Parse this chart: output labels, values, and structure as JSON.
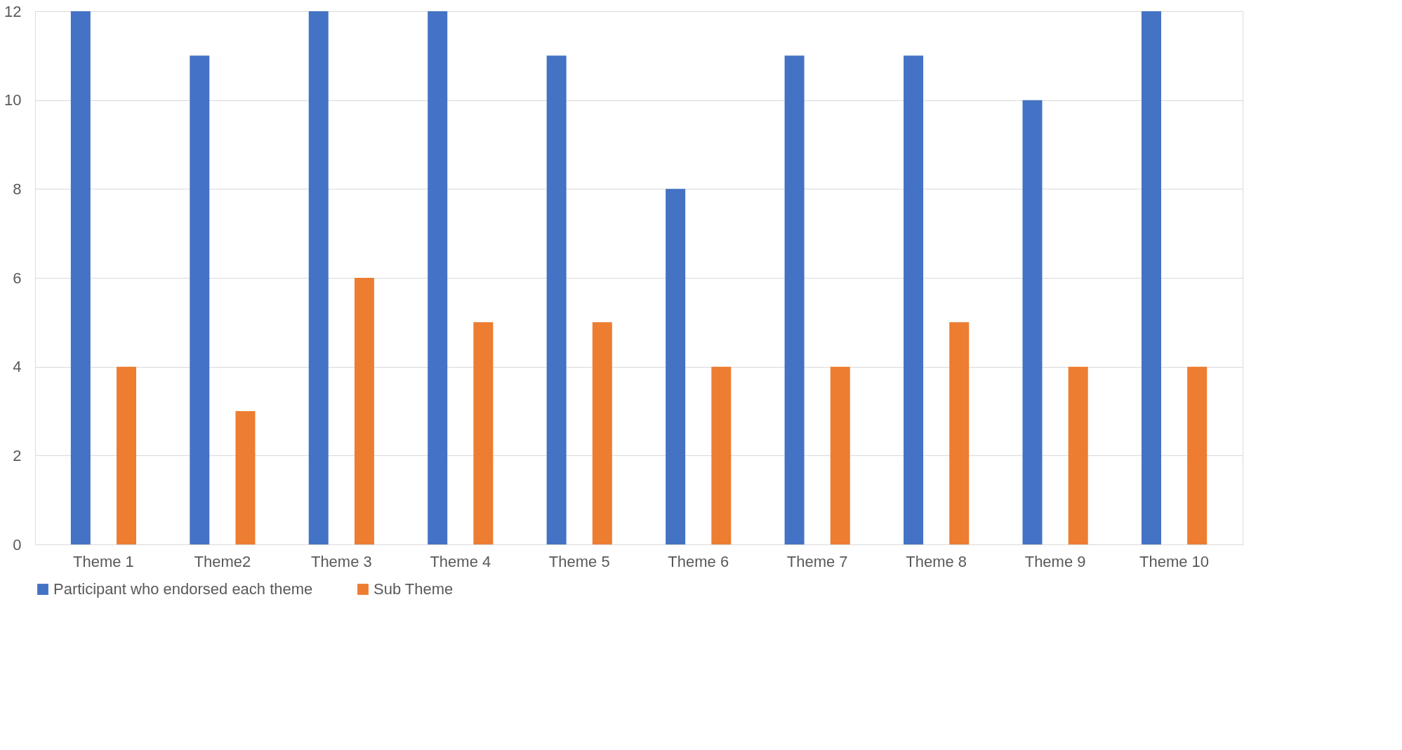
{
  "chart_data": {
    "type": "bar",
    "categories": [
      "Theme 1",
      "Theme2",
      "Theme 3",
      "Theme 4",
      "Theme 5",
      "Theme 6",
      "Theme 7",
      "Theme 8",
      "Theme 9",
      "Theme 10"
    ],
    "series": [
      {
        "name": "Participant who endorsed each theme",
        "color": "#4472c4",
        "values": [
          12,
          11,
          12,
          12,
          11,
          8,
          11,
          11,
          10,
          12
        ]
      },
      {
        "name": "Sub Theme",
        "color": "#ed7d31",
        "values": [
          4,
          3,
          6,
          5,
          5,
          4,
          4,
          5,
          4,
          4
        ]
      }
    ],
    "ylim": [
      0,
      12
    ],
    "yticks": [
      0,
      2,
      4,
      6,
      8,
      10,
      12
    ],
    "grid": "y",
    "legend": "bottom"
  }
}
